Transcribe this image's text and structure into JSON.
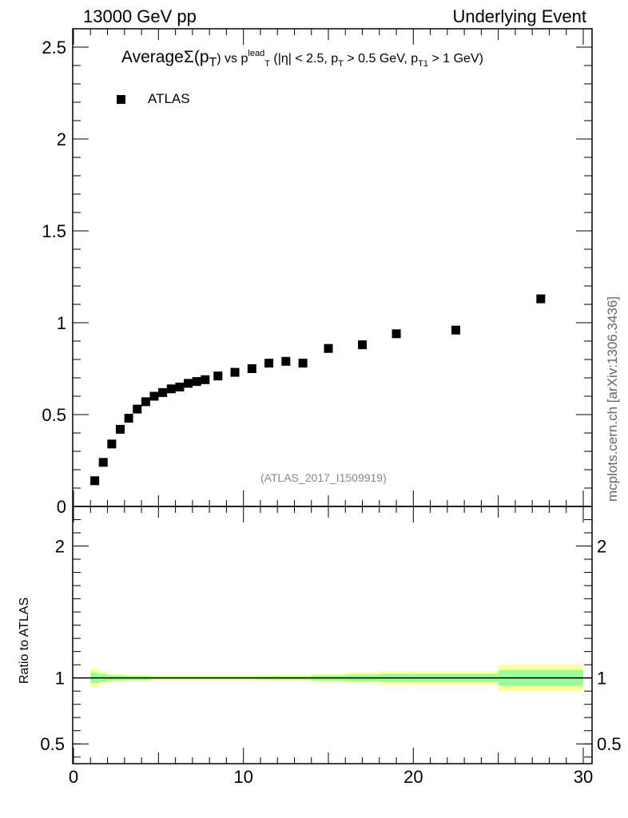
{
  "header": {
    "left": "13000 GeV pp",
    "right": "Underlying Event",
    "side_ref": "mcplots.cern.ch [arXiv:1306.3436]"
  },
  "plot_title": {
    "main": "Average",
    "sigma": "Σ(p",
    "t_sub": "T",
    "vs": ") vs p",
    "lead_sup": "lead",
    "lead_sub": "T",
    "cuts_a": " (|η| < 2.5, p",
    "cuts_sub1": "T",
    "cuts_b": " > 0.5 GeV, p",
    "cuts_sub2": "T1",
    "cuts_c": " > 1 GeV)"
  },
  "legend": {
    "label": "ATLAS"
  },
  "analysis_id": "(ATLAS_2017_I1509919)",
  "ratio_ylabel": "Ratio to ATLAS",
  "colors": {
    "marker": "#000000",
    "band_outer": "#ffff99",
    "band_inner": "#99ff99"
  },
  "chart_data": {
    "type": "scatter",
    "series": [
      {
        "name": "ATLAS",
        "x": [
          1.25,
          1.75,
          2.25,
          2.75,
          3.25,
          3.75,
          4.25,
          4.75,
          5.25,
          5.75,
          6.25,
          6.75,
          7.25,
          7.75,
          8.5,
          9.5,
          10.5,
          11.5,
          12.5,
          13.5,
          15.0,
          17.0,
          19.0,
          22.5,
          27.5
        ],
        "y": [
          0.14,
          0.24,
          0.34,
          0.42,
          0.48,
          0.53,
          0.57,
          0.6,
          0.62,
          0.64,
          0.65,
          0.67,
          0.68,
          0.69,
          0.71,
          0.73,
          0.75,
          0.78,
          0.79,
          0.78,
          0.86,
          0.88,
          0.94,
          0.96,
          1.13
        ]
      }
    ],
    "xlim": [
      0,
      30
    ],
    "ylim": [
      0,
      2.6
    ],
    "xticks": [
      "0",
      "10",
      "20",
      "30"
    ],
    "yticks": [
      "0",
      "0.5",
      "1",
      "1.5",
      "2",
      "2.5"
    ],
    "ratio": {
      "ylim": [
        0.35,
        2.3
      ],
      "yticks": [
        "0.5",
        "1",
        "2"
      ],
      "bin_edges": [
        1,
        1.5,
        2,
        2.5,
        3,
        3.5,
        4,
        4.5,
        5,
        5.5,
        6,
        6.5,
        7,
        7.5,
        8,
        9,
        10,
        11,
        12,
        13,
        14,
        16,
        18,
        20,
        25,
        30
      ],
      "inner_halfwidth": [
        0.04,
        0.03,
        0.02,
        0.02,
        0.015,
        0.015,
        0.015,
        0.01,
        0.01,
        0.01,
        0.01,
        0.01,
        0.01,
        0.01,
        0.01,
        0.01,
        0.01,
        0.012,
        0.012,
        0.012,
        0.02,
        0.025,
        0.03,
        0.03,
        0.06
      ],
      "outer_halfwidth": [
        0.07,
        0.05,
        0.03,
        0.03,
        0.025,
        0.025,
        0.025,
        0.02,
        0.02,
        0.02,
        0.02,
        0.02,
        0.02,
        0.02,
        0.02,
        0.02,
        0.02,
        0.022,
        0.022,
        0.022,
        0.03,
        0.04,
        0.05,
        0.05,
        0.1
      ]
    }
  }
}
